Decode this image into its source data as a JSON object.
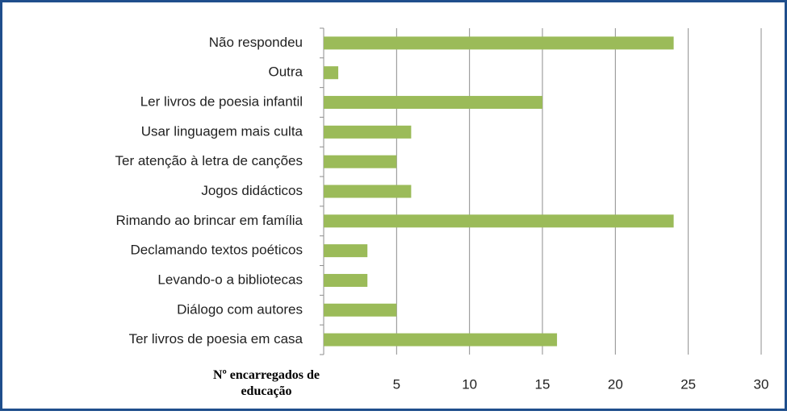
{
  "chart_data": {
    "type": "bar",
    "orientation": "horizontal",
    "categories": [
      "Não respondeu",
      "Outra",
      "Ler livros de poesia infantil",
      "Usar linguagem mais culta",
      "Ter atenção à letra de canções",
      "Jogos didácticos",
      "Rimando ao brincar em família",
      "Declamando textos poéticos",
      "Levando-o a bibliotecas",
      "Diálogo com autores",
      "Ter livros de poesia em casa"
    ],
    "values": [
      24,
      1,
      15,
      6,
      5,
      6,
      24,
      3,
      3,
      5,
      16
    ],
    "color": "#9bbb59",
    "xlabel": "Nº encarregados de educação",
    "xlim": [
      0,
      30
    ],
    "xticks": [
      5,
      10,
      15,
      20,
      25,
      30
    ],
    "grid": true
  }
}
